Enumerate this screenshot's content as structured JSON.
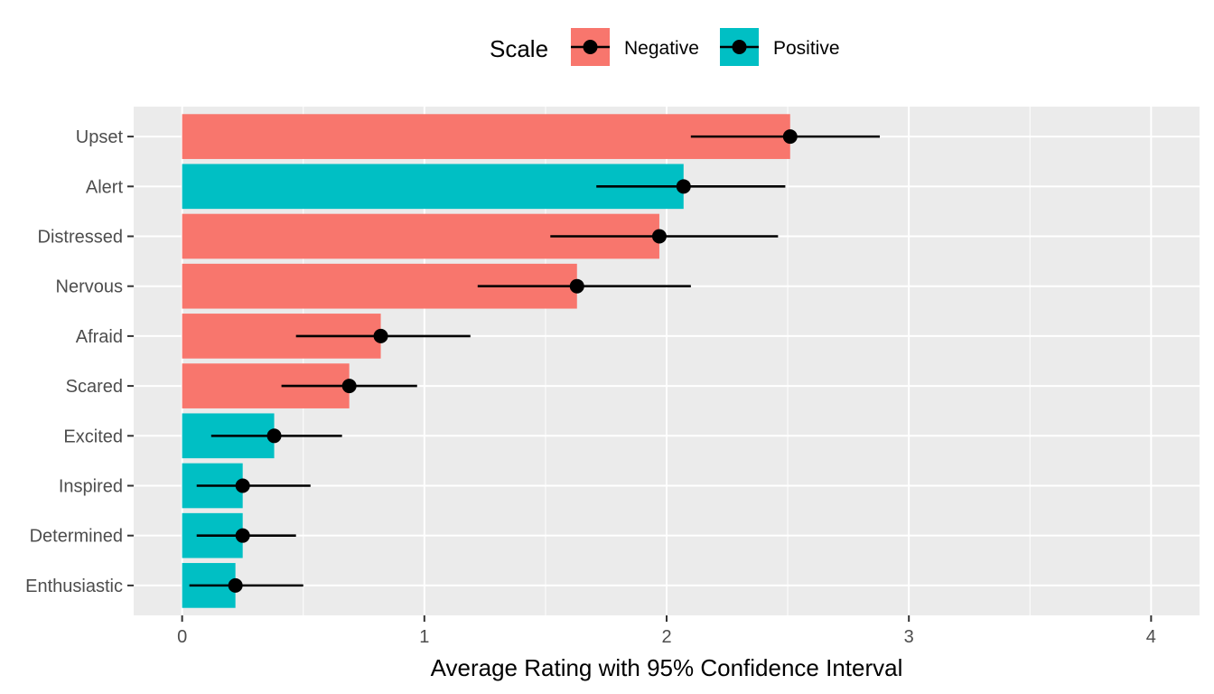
{
  "chart_data": {
    "type": "bar",
    "orientation": "horizontal",
    "title": "",
    "xlabel": "Average Rating with 95% Confidence Interval",
    "ylabel": "",
    "xlim": [
      -0.2,
      4.2
    ],
    "x_ticks": [
      0,
      1,
      2,
      3,
      4
    ],
    "grid": true,
    "legend": {
      "title": "Scale",
      "placement": "top",
      "entries": [
        {
          "name": "Negative",
          "color": "#F8766D"
        },
        {
          "name": "Positive",
          "color": "#00BFC4"
        }
      ]
    },
    "categories": [
      "Upset",
      "Alert",
      "Distressed",
      "Nervous",
      "Afraid",
      "Scared",
      "Excited",
      "Inspired",
      "Determined",
      "Enthusiastic"
    ],
    "scale": [
      "Negative",
      "Positive",
      "Negative",
      "Negative",
      "Negative",
      "Negative",
      "Positive",
      "Positive",
      "Positive",
      "Positive"
    ],
    "values": [
      2.51,
      2.07,
      1.97,
      1.63,
      0.82,
      0.69,
      0.38,
      0.25,
      0.25,
      0.22
    ],
    "ci_lower": [
      2.1,
      1.71,
      1.52,
      1.22,
      0.47,
      0.41,
      0.12,
      0.06,
      0.06,
      0.03
    ],
    "ci_upper": [
      2.88,
      2.49,
      2.46,
      2.1,
      1.19,
      0.97,
      0.66,
      0.53,
      0.47,
      0.5
    ]
  }
}
